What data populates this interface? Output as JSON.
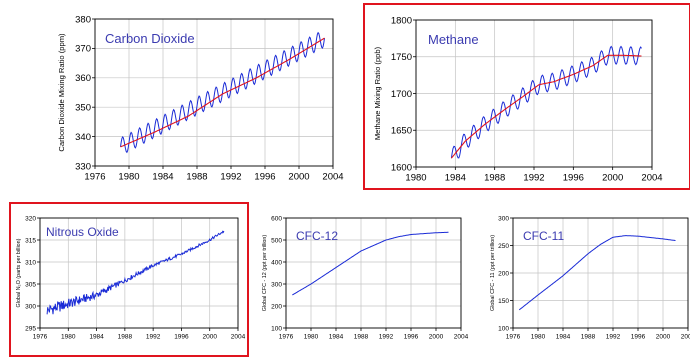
{
  "chart_data": [
    {
      "id": "co2",
      "type": "line",
      "title": "Carbon Dioxide",
      "ylabel": "Carbon Dioxide Mixing Ratio (ppm)",
      "xlim": [
        1976,
        2004
      ],
      "ylim": [
        330,
        380
      ],
      "xticks": [
        1976,
        1980,
        1984,
        1988,
        1992,
        1996,
        2000,
        2004
      ],
      "yticks": [
        330,
        340,
        350,
        360,
        370,
        380
      ],
      "highlighted": false,
      "series": [
        {
          "role": "monthly",
          "color": "#1a2bd6",
          "x": [
            1979.0,
            2003.0
          ],
          "trend_y": [
            336.5,
            373.5
          ],
          "seasonal_amplitude": 3.0
        },
        {
          "role": "trend",
          "color": "#e0141e",
          "x": [
            1979.0,
            1983.0,
            1987.0,
            1991.0,
            1995.0,
            1999.0,
            2003.0
          ],
          "y": [
            336.5,
            341.5,
            347.0,
            354.5,
            360.0,
            366.5,
            373.5
          ]
        }
      ]
    },
    {
      "id": "ch4",
      "type": "line",
      "title": "Methane",
      "ylabel": "Methane Mixing Ratio (ppb)",
      "xlim": [
        1980,
        2004
      ],
      "ylim": [
        1600,
        1800
      ],
      "xticks": [
        1980,
        1984,
        1988,
        1992,
        1996,
        2000,
        2004
      ],
      "yticks": [
        1600,
        1650,
        1700,
        1750,
        1800
      ],
      "highlighted": true,
      "series": [
        {
          "role": "monthly",
          "color": "#1a2bd6",
          "seasonal_amplitude": 12
        },
        {
          "role": "trend",
          "color": "#e0141e",
          "x": [
            1983.6,
            1985.0,
            1987.0,
            1989.0,
            1991.0,
            1992.5,
            1994.0,
            1996.0,
            1998.0,
            1999.5,
            2001.0,
            2003.0
          ],
          "y": [
            1612,
            1635,
            1658,
            1678,
            1697,
            1712,
            1716,
            1726,
            1738,
            1752,
            1752,
            1751
          ]
        }
      ]
    },
    {
      "id": "n2o",
      "type": "line",
      "title": "Nitrous Oxide",
      "ylabel": "Global N₂O (parts per billion)",
      "xlim": [
        1976,
        2004
      ],
      "ylim": [
        295,
        320
      ],
      "xticks": [
        1976,
        1980,
        1984,
        1988,
        1992,
        1996,
        2000,
        2004
      ],
      "yticks": [
        295,
        300,
        305,
        310,
        315,
        320
      ],
      "highlighted": true,
      "series": [
        {
          "role": "monthly",
          "color": "#1a2bd6",
          "x": [
            1977.0,
            1980.0,
            1984.0,
            1988.0,
            1992.0,
            1996.0,
            2000.0,
            2002.0
          ],
          "y": [
            299.0,
            300.5,
            302.5,
            305.8,
            309.2,
            311.8,
            315.0,
            317.0
          ],
          "noise": [
            1.4,
            1.2,
            0.8,
            0.5,
            0.4,
            0.3,
            0.3,
            0.3
          ]
        }
      ]
    },
    {
      "id": "cfc12",
      "type": "line",
      "title": "CFC-12",
      "ylabel": "Global CFC - 12 (ppt per trillion)",
      "xlim": [
        1976,
        2004
      ],
      "ylim": [
        100,
        600
      ],
      "xticks": [
        1976,
        1980,
        1984,
        1988,
        1992,
        1996,
        2000,
        2004
      ],
      "yticks": [
        100,
        200,
        300,
        400,
        500,
        600
      ],
      "highlighted": false,
      "series": [
        {
          "role": "monthly",
          "color": "#1a2bd6",
          "x": [
            1977.0,
            1980.0,
            1984.0,
            1988.0,
            1992.0,
            1994.0,
            1996.0,
            2000.0,
            2002.0
          ],
          "y": [
            250,
            300,
            375,
            450,
            500,
            515,
            525,
            533,
            535
          ]
        }
      ]
    },
    {
      "id": "cfc11",
      "type": "line",
      "title": "CFC-11",
      "ylabel": "Global CFC - 11 (ppt per trillion)",
      "xlim": [
        1976,
        2004
      ],
      "ylim": [
        100,
        300
      ],
      "xticks": [
        1976,
        1980,
        1984,
        1988,
        1992,
        1996,
        2000,
        2004
      ],
      "yticks": [
        100,
        150,
        200,
        250,
        300
      ],
      "highlighted": false,
      "series": [
        {
          "role": "monthly",
          "color": "#1a2bd6",
          "x": [
            1977.0,
            1980.0,
            1984.0,
            1988.0,
            1990.0,
            1992.0,
            1994.0,
            1996.0,
            2000.0,
            2002.0
          ],
          "y": [
            133,
            160,
            195,
            235,
            252,
            265,
            268,
            267,
            262,
            259
          ]
        }
      ]
    }
  ]
}
